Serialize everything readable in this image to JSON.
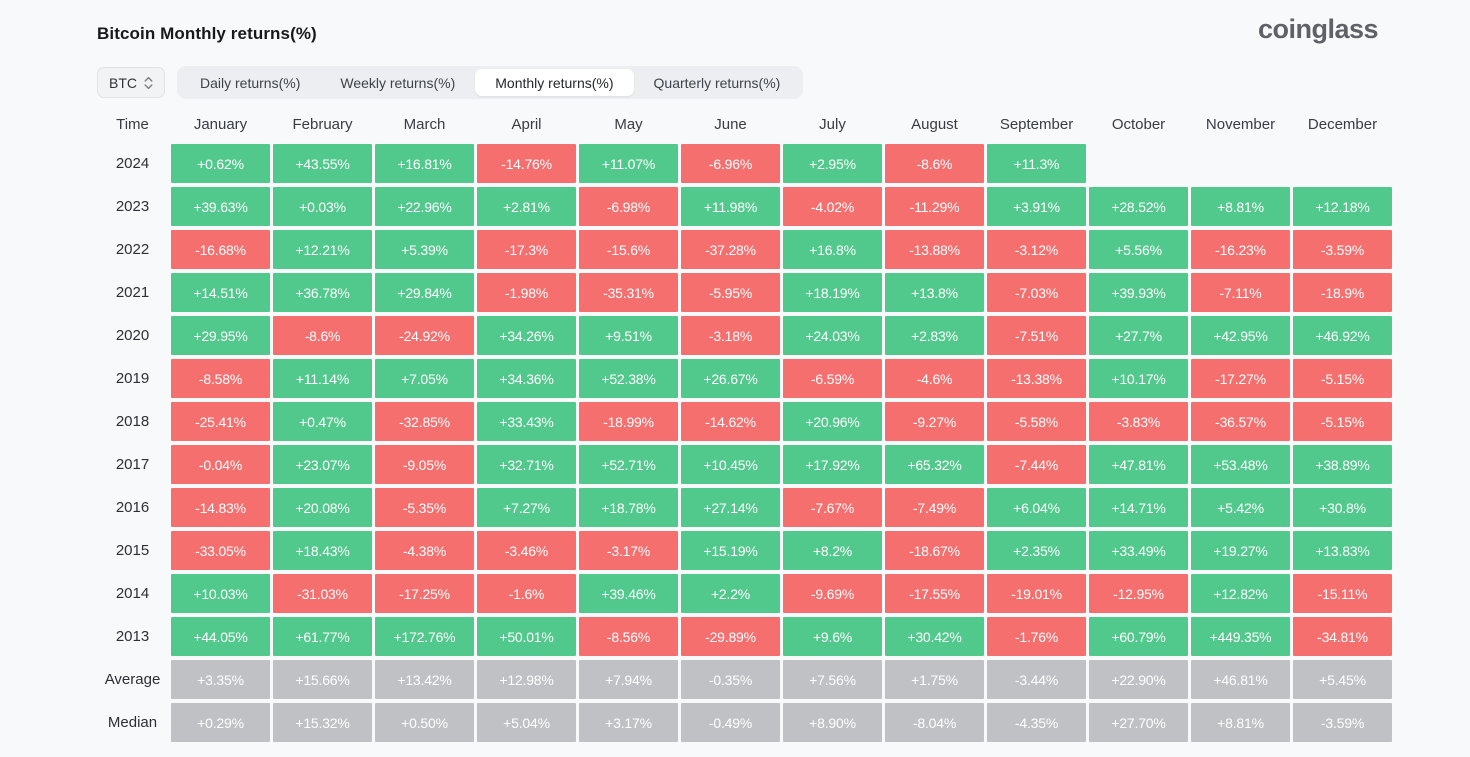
{
  "page": {
    "title": "Bitcoin Monthly returns(%)",
    "logo_text": "coinglass"
  },
  "controls": {
    "coin_selector": {
      "value": "BTC",
      "icon": "updown-chevron-icon"
    },
    "tabs": [
      {
        "label": "Daily returns(%)",
        "active": false
      },
      {
        "label": "Weekly returns(%)",
        "active": false
      },
      {
        "label": "Monthly returns(%)",
        "active": true
      },
      {
        "label": "Quarterly returns(%)",
        "active": false
      }
    ]
  },
  "colors": {
    "positive": "#52c98c",
    "negative": "#f66f6f",
    "neutral": "#bfc1c5",
    "page_bg": "#f8f9fb",
    "tab_bar_bg": "#eceef1",
    "active_tab_bg": "#ffffff"
  },
  "chart_data": {
    "type": "heatmap",
    "title": "Bitcoin Monthly returns(%)",
    "time_header": "Time",
    "columns": [
      "January",
      "February",
      "March",
      "April",
      "May",
      "June",
      "July",
      "August",
      "September",
      "October",
      "November",
      "December"
    ],
    "color_rule": "cell green when value positive, red when negative; Average and Median rows are gray",
    "rows": [
      {
        "label": "2024",
        "neutral": false,
        "values": [
          "+0.62%",
          "+43.55%",
          "+16.81%",
          "-14.76%",
          "+11.07%",
          "-6.96%",
          "+2.95%",
          "-8.6%",
          "+11.3%",
          null,
          null,
          null
        ]
      },
      {
        "label": "2023",
        "neutral": false,
        "values": [
          "+39.63%",
          "+0.03%",
          "+22.96%",
          "+2.81%",
          "-6.98%",
          "+11.98%",
          "-4.02%",
          "-11.29%",
          "+3.91%",
          "+28.52%",
          "+8.81%",
          "+12.18%"
        ]
      },
      {
        "label": "2022",
        "neutral": false,
        "values": [
          "-16.68%",
          "+12.21%",
          "+5.39%",
          "-17.3%",
          "-15.6%",
          "-37.28%",
          "+16.8%",
          "-13.88%",
          "-3.12%",
          "+5.56%",
          "-16.23%",
          "-3.59%"
        ]
      },
      {
        "label": "2021",
        "neutral": false,
        "values": [
          "+14.51%",
          "+36.78%",
          "+29.84%",
          "-1.98%",
          "-35.31%",
          "-5.95%",
          "+18.19%",
          "+13.8%",
          "-7.03%",
          "+39.93%",
          "-7.11%",
          "-18.9%"
        ]
      },
      {
        "label": "2020",
        "neutral": false,
        "values": [
          "+29.95%",
          "-8.6%",
          "-24.92%",
          "+34.26%",
          "+9.51%",
          "-3.18%",
          "+24.03%",
          "+2.83%",
          "-7.51%",
          "+27.7%",
          "+42.95%",
          "+46.92%"
        ]
      },
      {
        "label": "2019",
        "neutral": false,
        "values": [
          "-8.58%",
          "+11.14%",
          "+7.05%",
          "+34.36%",
          "+52.38%",
          "+26.67%",
          "-6.59%",
          "-4.6%",
          "-13.38%",
          "+10.17%",
          "-17.27%",
          "-5.15%"
        ]
      },
      {
        "label": "2018",
        "neutral": false,
        "values": [
          "-25.41%",
          "+0.47%",
          "-32.85%",
          "+33.43%",
          "-18.99%",
          "-14.62%",
          "+20.96%",
          "-9.27%",
          "-5.58%",
          "-3.83%",
          "-36.57%",
          "-5.15%"
        ]
      },
      {
        "label": "2017",
        "neutral": false,
        "values": [
          "-0.04%",
          "+23.07%",
          "-9.05%",
          "+32.71%",
          "+52.71%",
          "+10.45%",
          "+17.92%",
          "+65.32%",
          "-7.44%",
          "+47.81%",
          "+53.48%",
          "+38.89%"
        ]
      },
      {
        "label": "2016",
        "neutral": false,
        "values": [
          "-14.83%",
          "+20.08%",
          "-5.35%",
          "+7.27%",
          "+18.78%",
          "+27.14%",
          "-7.67%",
          "-7.49%",
          "+6.04%",
          "+14.71%",
          "+5.42%",
          "+30.8%"
        ]
      },
      {
        "label": "2015",
        "neutral": false,
        "values": [
          "-33.05%",
          "+18.43%",
          "-4.38%",
          "-3.46%",
          "-3.17%",
          "+15.19%",
          "+8.2%",
          "-18.67%",
          "+2.35%",
          "+33.49%",
          "+19.27%",
          "+13.83%"
        ]
      },
      {
        "label": "2014",
        "neutral": false,
        "values": [
          "+10.03%",
          "-31.03%",
          "-17.25%",
          "-1.6%",
          "+39.46%",
          "+2.2%",
          "-9.69%",
          "-17.55%",
          "-19.01%",
          "-12.95%",
          "+12.82%",
          "-15.11%"
        ]
      },
      {
        "label": "2013",
        "neutral": false,
        "values": [
          "+44.05%",
          "+61.77%",
          "+172.76%",
          "+50.01%",
          "-8.56%",
          "-29.89%",
          "+9.6%",
          "+30.42%",
          "-1.76%",
          "+60.79%",
          "+449.35%",
          "-34.81%"
        ]
      },
      {
        "label": "Average",
        "neutral": true,
        "values": [
          "+3.35%",
          "+15.66%",
          "+13.42%",
          "+12.98%",
          "+7.94%",
          "-0.35%",
          "+7.56%",
          "+1.75%",
          "-3.44%",
          "+22.90%",
          "+46.81%",
          "+5.45%"
        ]
      },
      {
        "label": "Median",
        "neutral": true,
        "values": [
          "+0.29%",
          "+15.32%",
          "+0.50%",
          "+5.04%",
          "+3.17%",
          "-0.49%",
          "+8.90%",
          "-8.04%",
          "-4.35%",
          "+27.70%",
          "+8.81%",
          "-3.59%"
        ]
      }
    ]
  }
}
